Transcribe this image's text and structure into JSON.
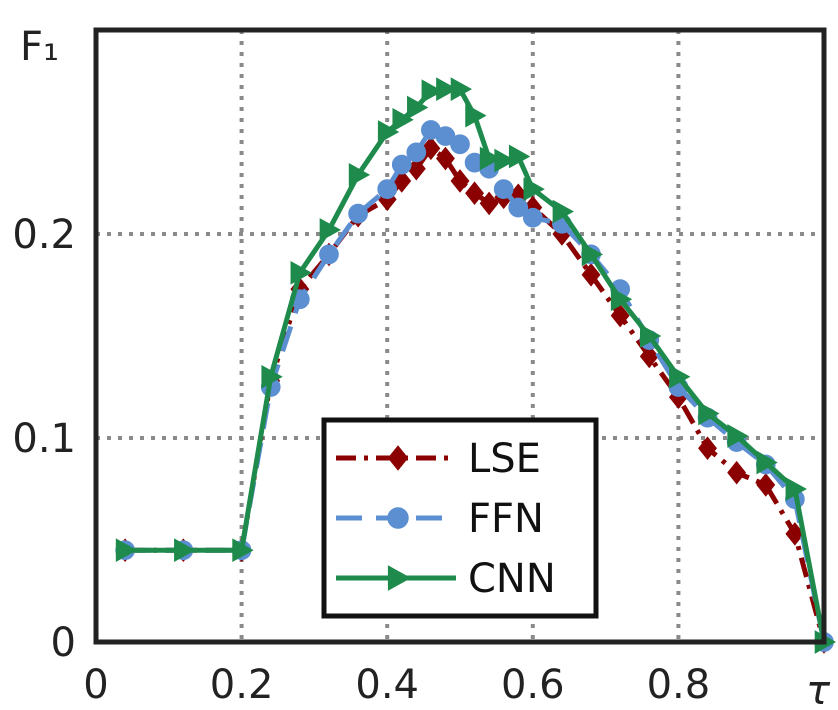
{
  "chart_data": {
    "type": "line",
    "xlabel": "τ",
    "ylabel": "F₁",
    "xlim": [
      0,
      1
    ],
    "ylim": [
      0,
      0.3
    ],
    "xticks": [
      0,
      0.2,
      0.4,
      0.6,
      0.8
    ],
    "xtick_labels": [
      "0",
      "0.2",
      "0.4",
      "0.6",
      "0.8"
    ],
    "yticks": [
      0,
      0.1,
      0.2
    ],
    "ytick_labels": [
      "0",
      "0.1",
      "0.2"
    ],
    "grid": true,
    "legend_position": "bottom-center",
    "series": [
      {
        "name": "LSE",
        "color": "#8b0000",
        "marker": "diamond",
        "linestyle": "dash-dot",
        "x": [
          0.04,
          0.12,
          0.2,
          0.24,
          0.28,
          0.32,
          0.36,
          0.4,
          0.42,
          0.44,
          0.46,
          0.48,
          0.5,
          0.52,
          0.54,
          0.56,
          0.58,
          0.6,
          0.64,
          0.68,
          0.72,
          0.76,
          0.8,
          0.84,
          0.88,
          0.92,
          0.96,
          1.0
        ],
        "y": [
          0.045,
          0.045,
          0.045,
          0.128,
          0.173,
          0.19,
          0.209,
          0.217,
          0.226,
          0.232,
          0.242,
          0.237,
          0.226,
          0.22,
          0.215,
          0.218,
          0.219,
          0.213,
          0.2,
          0.18,
          0.16,
          0.14,
          0.12,
          0.095,
          0.083,
          0.077,
          0.053,
          0.0
        ]
      },
      {
        "name": "FFN",
        "color": "#5b8fd1",
        "marker": "circle",
        "linestyle": "dashed",
        "x": [
          0.04,
          0.12,
          0.2,
          0.24,
          0.28,
          0.32,
          0.36,
          0.4,
          0.42,
          0.44,
          0.46,
          0.48,
          0.5,
          0.52,
          0.54,
          0.56,
          0.58,
          0.6,
          0.64,
          0.68,
          0.72,
          0.76,
          0.8,
          0.84,
          0.88,
          0.92,
          0.96,
          1.0
        ],
        "y": [
          0.045,
          0.045,
          0.045,
          0.125,
          0.168,
          0.19,
          0.21,
          0.222,
          0.234,
          0.24,
          0.251,
          0.248,
          0.244,
          0.235,
          0.232,
          0.222,
          0.213,
          0.208,
          0.205,
          0.19,
          0.173,
          0.148,
          0.125,
          0.11,
          0.098,
          0.087,
          0.07,
          0.0
        ]
      },
      {
        "name": "CNN",
        "color": "#1e8b4c",
        "marker": "triangle-right",
        "linestyle": "solid",
        "x": [
          0.04,
          0.12,
          0.2,
          0.24,
          0.28,
          0.32,
          0.36,
          0.4,
          0.42,
          0.44,
          0.46,
          0.48,
          0.5,
          0.52,
          0.54,
          0.56,
          0.58,
          0.6,
          0.64,
          0.68,
          0.72,
          0.76,
          0.8,
          0.84,
          0.88,
          0.92,
          0.96,
          1.0
        ],
        "y": [
          0.045,
          0.045,
          0.045,
          0.13,
          0.181,
          0.202,
          0.229,
          0.25,
          0.256,
          0.262,
          0.27,
          0.271,
          0.271,
          0.258,
          0.237,
          0.236,
          0.238,
          0.222,
          0.211,
          0.19,
          0.168,
          0.15,
          0.13,
          0.112,
          0.101,
          0.088,
          0.075,
          0.0
        ]
      }
    ]
  }
}
